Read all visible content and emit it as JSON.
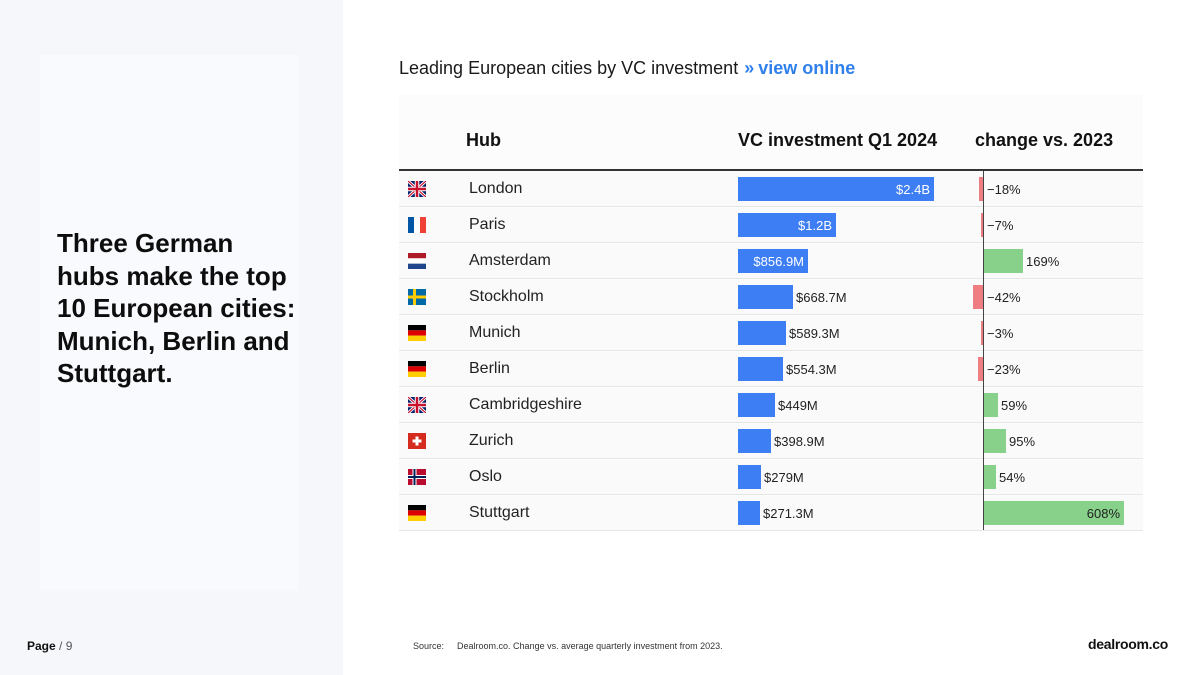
{
  "page": {
    "label": "Page",
    "number": "/ 9"
  },
  "headline": "Three German hubs make the top 10 European cities: Munich, Berlin and Stuttgart.",
  "chart_title": {
    "text": "Leading European cities by VC investment",
    "separator": "»",
    "link": "view online"
  },
  "source": {
    "label": "Source:",
    "text": "Dealroom.co. Change vs. average quarterly investment from 2023."
  },
  "logo": "dealroom.co",
  "colors": {
    "investment_bar": "#3e7ef5",
    "positive_change": "#88d18a",
    "negative_change": "#ef7e82",
    "link": "#2f80ed"
  },
  "chart_data": {
    "type": "table",
    "columns": [
      "Hub",
      "VC investment Q1 2024",
      "change vs. 2023"
    ],
    "investment_max_usd_m": 2400,
    "change_max_pct": 608,
    "rows": [
      {
        "flag": "gb",
        "hub": "London",
        "investment_usd_m": 2400,
        "investment_label": "$2.4B",
        "change_pct": -18,
        "change_label": "−18%"
      },
      {
        "flag": "fr",
        "hub": "Paris",
        "investment_usd_m": 1200,
        "investment_label": "$1.2B",
        "change_pct": -7,
        "change_label": "−7%"
      },
      {
        "flag": "nl",
        "hub": "Amsterdam",
        "investment_usd_m": 856.9,
        "investment_label": "$856.9M",
        "change_pct": 169,
        "change_label": "169%"
      },
      {
        "flag": "se",
        "hub": "Stockholm",
        "investment_usd_m": 668.7,
        "investment_label": "$668.7M",
        "change_pct": -42,
        "change_label": "−42%"
      },
      {
        "flag": "de",
        "hub": "Munich",
        "investment_usd_m": 589.3,
        "investment_label": "$589.3M",
        "change_pct": -3,
        "change_label": "−3%"
      },
      {
        "flag": "de",
        "hub": "Berlin",
        "investment_usd_m": 554.3,
        "investment_label": "$554.3M",
        "change_pct": -23,
        "change_label": "−23%"
      },
      {
        "flag": "gb",
        "hub": "Cambridgeshire",
        "investment_usd_m": 449,
        "investment_label": "$449M",
        "change_pct": 59,
        "change_label": "59%"
      },
      {
        "flag": "ch",
        "hub": "Zurich",
        "investment_usd_m": 398.9,
        "investment_label": "$398.9M",
        "change_pct": 95,
        "change_label": "95%"
      },
      {
        "flag": "no",
        "hub": "Oslo",
        "investment_usd_m": 279,
        "investment_label": "$279M",
        "change_pct": 54,
        "change_label": "54%"
      },
      {
        "flag": "de",
        "hub": "Stuttgart",
        "investment_usd_m": 271.3,
        "investment_label": "$271.3M",
        "change_pct": 608,
        "change_label": "608%"
      }
    ]
  }
}
